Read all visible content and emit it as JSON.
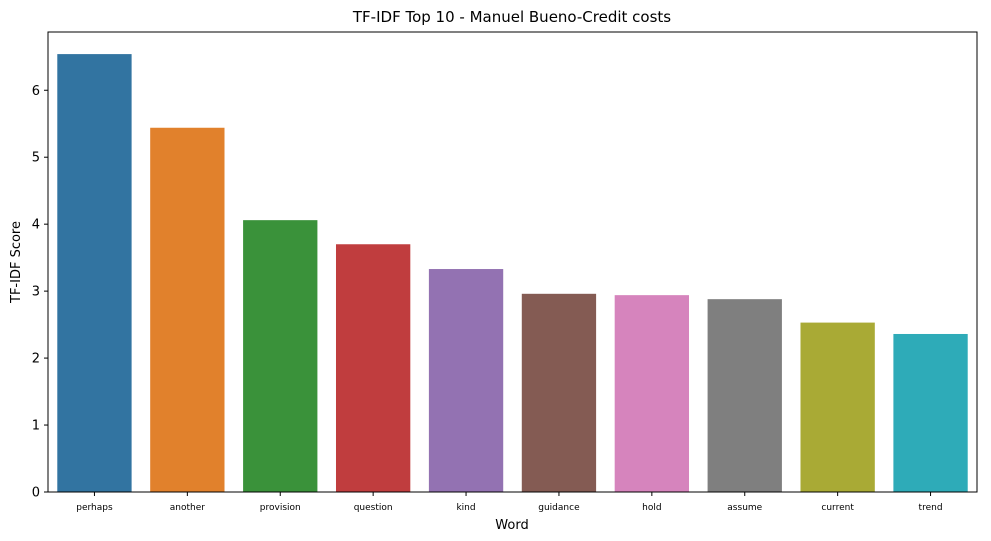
{
  "chart_data": {
    "type": "bar",
    "title": "TF-IDF Top 10 - Manuel Bueno-Credit costs",
    "xlabel": "Word",
    "ylabel": "TF-IDF Score",
    "categories": [
      "perhaps",
      "another",
      "provision",
      "question",
      "kind",
      "guidance",
      "hold",
      "assume",
      "current",
      "trend"
    ],
    "values": [
      6.54,
      5.44,
      4.06,
      3.7,
      3.33,
      2.96,
      2.94,
      2.88,
      2.53,
      2.36
    ],
    "colors": [
      "#3274a1",
      "#e1812c",
      "#3a923a",
      "#c03d3e",
      "#9372b2",
      "#845b53",
      "#d684bd",
      "#7f7f7f",
      "#a9aa35",
      "#2eabb8"
    ],
    "yticks": [
      0,
      1,
      2,
      3,
      4,
      5,
      6
    ],
    "ylim": [
      0,
      6.87
    ],
    "grid": false,
    "legend": "none"
  }
}
